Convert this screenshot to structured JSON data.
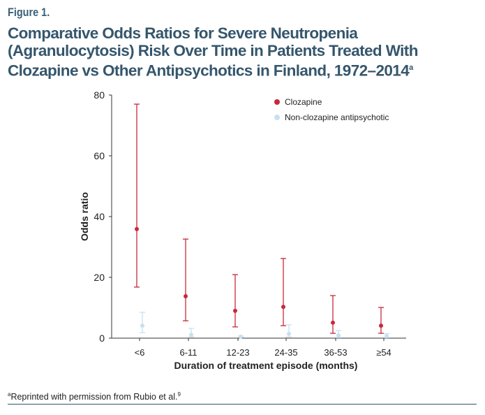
{
  "figure_label": "Figure 1.",
  "title": "Comparative Odds Ratios for Severe Neutropenia (Agranulocytosis) Risk Over Time in Patients Treated With Clozapine vs Other Antipsychotics in Finland, 1972–2014",
  "title_superscript": "a",
  "footnote": {
    "mark": "a",
    "text": "Reprinted with permission from Rubio et al.",
    "ref": "9"
  },
  "colors": {
    "clozapine": "#c8283c",
    "non_clozapine": "#c9e0f0",
    "title": "#35566c"
  },
  "chart_data": {
    "type": "scatter",
    "subtype": "point with error bars",
    "xlabel": "Duration of treatment episode (months)",
    "ylabel": "Odds ratio",
    "ylim": [
      0,
      80
    ],
    "yticks": [
      0,
      20,
      40,
      60,
      80
    ],
    "grid": false,
    "legend_position": "top-right",
    "categories": [
      "<6",
      "6-11",
      "12-23",
      "24-35",
      "36-53",
      "≥54"
    ],
    "series": [
      {
        "name": "Clozapine",
        "values": [
          35.9,
          13.8,
          9.0,
          10.3,
          5.1,
          4.1
        ],
        "lower": [
          16.8,
          5.7,
          3.7,
          4.1,
          1.6,
          1.6
        ],
        "upper": [
          77.0,
          32.6,
          20.9,
          26.2,
          14.0,
          10.1
        ]
      },
      {
        "name": "Non-clozapine antipsychotic",
        "values": [
          4.1,
          1.1,
          0.5,
          1.4,
          0.9,
          0.7
        ],
        "lower": [
          1.8,
          0.4,
          0.3,
          0.4,
          0.2,
          0.2
        ],
        "upper": [
          8.5,
          3.2,
          0.7,
          4.4,
          2.5,
          1.5
        ]
      }
    ]
  }
}
